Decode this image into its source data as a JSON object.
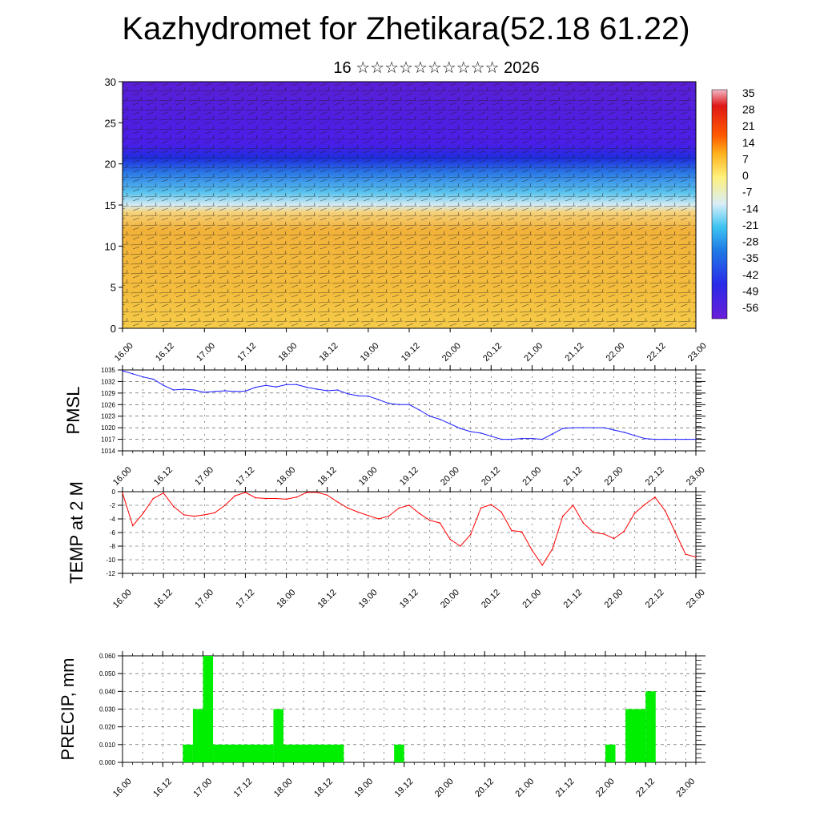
{
  "title": "Kazhydromet for Zhetikara(52.18 61.22)",
  "subtitle": "16 ☆☆☆☆☆☆☆☆☆☆ 2026",
  "time_labels": [
    "16.00",
    "16.12",
    "17.00",
    "17.12",
    "18.00",
    "18.12",
    "19.00",
    "19.12",
    "20.00",
    "20.12",
    "21.00",
    "21.12",
    "22.00",
    "22.12",
    "23.00"
  ],
  "colors": {
    "pmsl_line": "#1a1aff",
    "temp_line": "#ff0000",
    "precip_bar": "#00ee00"
  },
  "chart_data": [
    {
      "type": "heatmap",
      "name": "cross-section",
      "description_hidden": true,
      "y_ticks": [
        "0",
        "5",
        "10",
        "15",
        "20",
        "25",
        "30"
      ],
      "ylim": [
        0,
        30
      ],
      "colorbar": {
        "labels": [
          "35",
          "28",
          "21",
          "14",
          "7",
          "0",
          "-7",
          "-14",
          "-21",
          "-28",
          "-35",
          "-42",
          "-49",
          "-56"
        ],
        "range": [
          -60,
          40
        ]
      }
    },
    {
      "type": "line",
      "name": "PMSL",
      "ylabel": "PMSL",
      "ylim": [
        1014,
        1035
      ],
      "y_ticks": [
        "1014",
        "1017",
        "1020",
        "1023",
        "1026",
        "1029",
        "1032",
        "1035"
      ],
      "x": [
        0,
        3,
        6,
        9,
        12,
        15,
        18,
        21,
        24,
        27,
        30,
        33,
        36,
        39,
        42,
        45,
        48,
        51,
        54,
        57,
        60,
        63,
        66,
        69,
        72,
        75,
        78,
        81,
        84,
        87,
        90,
        93,
        96,
        99,
        102,
        105,
        108,
        111,
        114,
        117,
        120,
        123,
        126,
        129,
        132,
        135,
        138,
        141,
        144,
        147,
        150,
        153,
        156,
        159,
        162,
        165,
        168
      ],
      "values": [
        1034.8,
        1034,
        1033.2,
        1032.6,
        1031,
        1029.8,
        1030,
        1029.8,
        1029.2,
        1029.4,
        1029.6,
        1029.4,
        1029.5,
        1030.5,
        1031,
        1030.6,
        1031.2,
        1031.2,
        1030.5,
        1030,
        1029.6,
        1029.8,
        1028.8,
        1028.3,
        1028.2,
        1027.3,
        1026.3,
        1026,
        1026,
        1024.6,
        1023,
        1022.2,
        1021,
        1019.8,
        1019,
        1018.6,
        1017.8,
        1017,
        1017,
        1017.2,
        1017.2,
        1017,
        1018.4,
        1019.8,
        1020,
        1020,
        1020,
        1020,
        1019.4,
        1018.8,
        1018,
        1017.2,
        1017,
        1017,
        1017,
        1017,
        1017
      ],
      "xlim": [
        0,
        168
      ]
    },
    {
      "type": "line",
      "name": "TEMP",
      "ylabel": "TEMP at 2 M",
      "ylim": [
        -12,
        0
      ],
      "y_ticks": [
        "0",
        "-2",
        "-4",
        "-6",
        "-8",
        "-10",
        "-12"
      ],
      "x": [
        0,
        3,
        6,
        9,
        12,
        15,
        18,
        21,
        24,
        27,
        30,
        33,
        36,
        39,
        42,
        45,
        48,
        51,
        54,
        57,
        60,
        63,
        66,
        69,
        72,
        75,
        78,
        81,
        84,
        87,
        90,
        93,
        96,
        99,
        102,
        105,
        108,
        111,
        114,
        117,
        120,
        123,
        126,
        129,
        132,
        135,
        138,
        141,
        144,
        147,
        150,
        153,
        156,
        159,
        162,
        165,
        168
      ],
      "values": [
        -0.2,
        -5,
        -3.2,
        -1,
        -0.2,
        -2.2,
        -3.4,
        -3.6,
        -3.4,
        -3.1,
        -2,
        -0.6,
        -0.1,
        -0.9,
        -1,
        -1,
        -1.1,
        -0.8,
        -0.1,
        -0.1,
        -0.5,
        -1.5,
        -2.4,
        -3,
        -3.5,
        -4,
        -3.6,
        -2.4,
        -2,
        -3.2,
        -4.2,
        -4.6,
        -7,
        -8,
        -6.3,
        -2.4,
        -1.9,
        -3,
        -5.7,
        -5.9,
        -8.6,
        -10.8,
        -8.4,
        -3.6,
        -2,
        -4.6,
        -6,
        -6.2,
        -6.9,
        -5.8,
        -3.2,
        -1.9,
        -0.8,
        -2.8,
        -6,
        -9.2,
        -9.6
      ],
      "xlim": [
        0,
        168
      ]
    },
    {
      "type": "bar",
      "name": "PRECIP",
      "ylabel": "PRECIP, mm",
      "ylim": [
        0,
        0.06
      ],
      "y_ticks": [
        "0.000",
        "0.010",
        "0.020",
        "0.030",
        "0.040",
        "0.050",
        "0.060"
      ],
      "bars": [
        {
          "start": 18,
          "end": 21,
          "value": 0.01
        },
        {
          "start": 21,
          "end": 24,
          "value": 0.03
        },
        {
          "start": 24,
          "end": 27,
          "value": 0.06
        },
        {
          "start": 27,
          "end": 45,
          "value": 0.01
        },
        {
          "start": 45,
          "end": 48,
          "value": 0.03
        },
        {
          "start": 48,
          "end": 66,
          "value": 0.01
        },
        {
          "start": 81,
          "end": 84,
          "value": 0.01
        },
        {
          "start": 144,
          "end": 147,
          "value": 0.01
        },
        {
          "start": 150,
          "end": 156,
          "value": 0.03
        },
        {
          "start": 156,
          "end": 159,
          "value": 0.04
        }
      ],
      "xlim": [
        0,
        171
      ]
    }
  ]
}
